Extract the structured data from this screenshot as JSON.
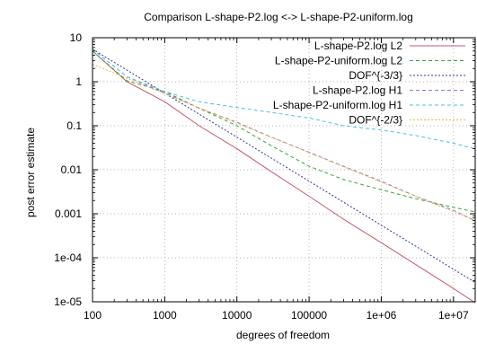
{
  "chart_data": {
    "type": "line",
    "title": "Comparison L-shape-P2.log <-> L-shape-P2-uniform.log",
    "xlabel": "degrees of freedom",
    "ylabel": "post error estimate",
    "xscale": "log",
    "yscale": "log",
    "xlim": [
      100,
      20000000
    ],
    "ylim": [
      1e-05,
      10
    ],
    "grid": true,
    "legend_position": "top-right",
    "x_ticks": [
      "100",
      "1000",
      "10000",
      "100000",
      "1e+06",
      "1e+07"
    ],
    "y_ticks": [
      "10",
      "1",
      "0.1",
      "0.01",
      "0.001",
      "1e-04",
      "1e-05"
    ],
    "series": [
      {
        "name": "L-shape-P2.log L2",
        "color": "#c4576b",
        "dash": "solid",
        "x": [
          100,
          300,
          1000,
          3000,
          10000,
          30000,
          100000,
          300000,
          1000000,
          3000000,
          10000000,
          20000000
        ],
        "y": [
          5,
          1,
          0.35,
          0.1,
          0.03,
          0.009,
          0.0025,
          0.00075,
          0.00022,
          7e-05,
          2e-05,
          9.5e-06
        ]
      },
      {
        "name": "L-shape-P2-uniform.log L2",
        "color": "#3aa33a",
        "dash": "dashed",
        "x": [
          100,
          300,
          1000,
          3000,
          10000,
          30000,
          100000,
          300000,
          1000000,
          3000000,
          10000000,
          20000000
        ],
        "y": [
          5,
          1.05,
          0.6,
          0.25,
          0.1,
          0.035,
          0.012,
          0.006,
          0.0035,
          0.0022,
          0.0014,
          0.0011
        ]
      },
      {
        "name": "DOF^{-3/3}",
        "color": "#333399",
        "dash": "dotted",
        "x": [
          100,
          20000000
        ],
        "y": [
          5.5,
          2.75e-05
        ]
      },
      {
        "name": "L-shape-P2.log H1",
        "color": "#a070c8",
        "dash": "dashed",
        "x": [
          100,
          300,
          1000,
          3000,
          10000,
          30000,
          100000,
          300000,
          1000000,
          3000000,
          10000000,
          20000000
        ],
        "y": [
          5.5,
          1.3,
          0.55,
          0.25,
          0.12,
          0.055,
          0.025,
          0.012,
          0.0055,
          0.0025,
          0.0012,
          0.0007
        ]
      },
      {
        "name": "L-shape-P2-uniform.log H1",
        "color": "#50bfe0",
        "dash": "dashed",
        "x": [
          100,
          300,
          1000,
          3000,
          10000,
          30000,
          100000,
          300000,
          1000000,
          3000000,
          10000000,
          20000000
        ],
        "y": [
          5.5,
          1.3,
          0.6,
          0.35,
          0.26,
          0.2,
          0.15,
          0.1,
          0.08,
          0.06,
          0.04,
          0.03
        ]
      },
      {
        "name": "DOF^{-2/3}",
        "color": "#e0c040",
        "dash": "dotted",
        "x": [
          100,
          20000000
        ],
        "y": [
          2.5,
          0.0007
        ]
      }
    ]
  }
}
